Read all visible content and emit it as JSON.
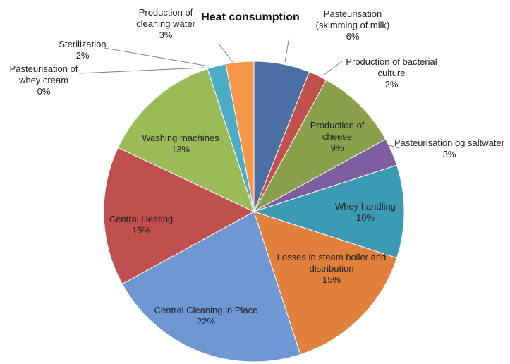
{
  "chart_data": {
    "type": "pie",
    "title": "Heat consumption",
    "categories": [
      "Pasteurisation (skimming of milk)",
      "Production of bacterial culture",
      "Production of cheese",
      "Pasteurisation og saltwater",
      "Whey handling",
      "Losses in steam boiler and distribution",
      "Central Cleaning in Place",
      "Central Heating",
      "Washing machines",
      "Pasteurisation of whey cream",
      "Sterilization",
      "Production of cleaning water"
    ],
    "values": [
      6,
      2,
      9,
      3,
      10,
      15,
      22,
      15,
      13,
      0,
      2,
      3
    ],
    "value_labels": [
      "6%",
      "2%",
      "9%",
      "3%",
      "10%",
      "15%",
      "22%",
      "15%",
      "13%",
      "0%",
      "2%",
      "3%"
    ],
    "colors": [
      "#4a6fa5",
      "#c0504d",
      "#8aa04a",
      "#7d5fa0",
      "#3d9ab5",
      "#e0803a",
      "#6f97d4",
      "#c0504d",
      "#9bbb59",
      "#8064a2",
      "#4bacc6",
      "#f79646"
    ]
  }
}
